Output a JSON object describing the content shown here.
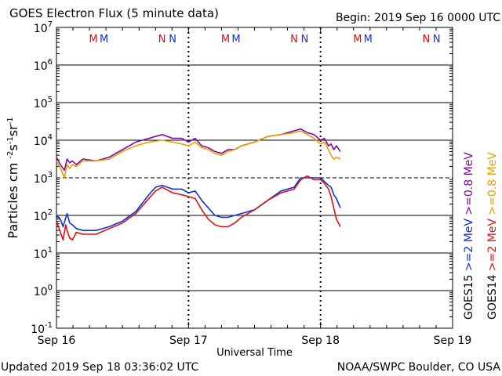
{
  "header": {
    "title": "GOES Electron Flux (5 minute data)",
    "begin": "Begin: 2019 Sep 16 0000 UTC"
  },
  "footer": {
    "updated": "Updated 2019 Sep 18 03:36:02 UTC",
    "source": "NOAA/SWPC Boulder, CO USA"
  },
  "colors": {
    "goes15_08": "#7a0aa0",
    "goes14_08": "#e8a000",
    "goes15_2": "#1030d0",
    "goes14_2": "#e01010",
    "marker_m": "#d01010",
    "marker_n": "#1030d0"
  },
  "chart_data": {
    "type": "line",
    "title": "GOES Electron Flux (5 minute data)",
    "xlabel": "Universal Time",
    "ylabel_parts": [
      "Particles cm",
      "-2",
      "s",
      "-1",
      "sr",
      "-1"
    ],
    "xlim_days": [
      0,
      3
    ],
    "ylim_log10": [
      -1,
      7
    ],
    "yscale": "log",
    "x_ticks": [
      {
        "day": 0,
        "label": "Sep 16"
      },
      {
        "day": 1,
        "label": "Sep 17"
      },
      {
        "day": 2,
        "label": "Sep 18"
      },
      {
        "day": 3,
        "label": "Sep 19"
      }
    ],
    "y_ticks": [
      {
        "exp": 7,
        "label": "10",
        "sup": "7"
      },
      {
        "exp": 6,
        "label": "10",
        "sup": "6"
      },
      {
        "exp": 5,
        "label": "10",
        "sup": "5"
      },
      {
        "exp": 4,
        "label": "10",
        "sup": "4"
      },
      {
        "exp": 3,
        "label": "10",
        "sup": "3"
      },
      {
        "exp": 2,
        "label": "10",
        "sup": "2"
      },
      {
        "exp": 1,
        "label": "10",
        "sup": "1"
      },
      {
        "exp": 0,
        "label": "10",
        "sup": "0"
      },
      {
        "exp": -1,
        "label": "10",
        "sup": "-1"
      }
    ],
    "threshold_log10": 3,
    "day_markers": [
      {
        "day": 0.28,
        "label": "M",
        "color": "marker_m"
      },
      {
        "day": 0.36,
        "label": "M",
        "color": "marker_n"
      },
      {
        "day": 0.8,
        "label": "N",
        "color": "marker_m"
      },
      {
        "day": 0.88,
        "label": "N",
        "color": "marker_n"
      },
      {
        "day": 1.28,
        "label": "M",
        "color": "marker_m"
      },
      {
        "day": 1.36,
        "label": "M",
        "color": "marker_n"
      },
      {
        "day": 1.8,
        "label": "N",
        "color": "marker_m"
      },
      {
        "day": 1.88,
        "label": "N",
        "color": "marker_n"
      },
      {
        "day": 2.28,
        "label": "M",
        "color": "marker_m"
      },
      {
        "day": 2.36,
        "label": "M",
        "color": "marker_n"
      },
      {
        "day": 2.8,
        "label": "N",
        "color": "marker_m"
      },
      {
        "day": 2.88,
        "label": "N",
        "color": "marker_n"
      }
    ],
    "legend": [
      {
        "sat": "GOES15",
        "energy": ">=0.8 MeV",
        "colorKey": "goes15_08"
      },
      {
        "sat": "GOES14",
        "energy": ">=0.8 MeV",
        "colorKey": "goes14_08"
      },
      {
        "sat": "GOES15",
        "energy": ">=2 MeV",
        "colorKey": "goes15_2"
      },
      {
        "sat": "GOES14",
        "energy": ">=2 MeV",
        "colorKey": "goes14_2"
      }
    ],
    "series": [
      {
        "name": "GOES15 >=0.8 MeV",
        "colorKey": "goes15_08",
        "x": [
          0.0,
          0.03,
          0.06,
          0.08,
          0.1,
          0.12,
          0.15,
          0.2,
          0.3,
          0.4,
          0.5,
          0.6,
          0.7,
          0.8,
          0.88,
          0.95,
          1.0,
          1.05,
          1.1,
          1.15,
          1.2,
          1.25,
          1.3,
          1.35,
          1.4,
          1.5,
          1.6,
          1.7,
          1.8,
          1.85,
          1.9,
          1.95,
          2.0,
          2.03,
          2.06,
          2.08,
          2.1,
          2.12,
          2.15
        ],
        "y": [
          3.55,
          3.35,
          3.2,
          3.5,
          3.4,
          3.45,
          3.35,
          3.5,
          3.45,
          3.55,
          3.75,
          3.95,
          4.05,
          4.15,
          4.05,
          4.05,
          3.95,
          4.05,
          3.85,
          3.8,
          3.7,
          3.65,
          3.75,
          3.75,
          3.85,
          3.95,
          4.1,
          4.15,
          4.25,
          4.3,
          4.2,
          4.15,
          4.0,
          4.05,
          3.85,
          3.9,
          3.75,
          3.85,
          3.7
        ]
      },
      {
        "name": "GOES14 >=0.8 MeV",
        "colorKey": "goes14_08",
        "x": [
          0.0,
          0.03,
          0.06,
          0.08,
          0.1,
          0.12,
          0.15,
          0.2,
          0.3,
          0.4,
          0.5,
          0.6,
          0.7,
          0.8,
          0.88,
          0.95,
          1.0,
          1.05,
          1.1,
          1.15,
          1.2,
          1.25,
          1.3,
          1.35,
          1.4,
          1.5,
          1.6,
          1.7,
          1.8,
          1.85,
          1.9,
          1.95,
          2.0,
          2.03,
          2.06,
          2.08,
          2.1,
          2.12,
          2.15
        ],
        "y": [
          3.45,
          3.25,
          3.0,
          3.35,
          3.25,
          3.35,
          3.3,
          3.45,
          3.45,
          3.5,
          3.7,
          3.85,
          3.95,
          4.0,
          3.95,
          3.9,
          3.85,
          3.95,
          3.8,
          3.75,
          3.65,
          3.6,
          3.7,
          3.75,
          3.85,
          3.95,
          4.1,
          4.15,
          4.2,
          4.25,
          4.15,
          4.05,
          3.9,
          3.95,
          3.75,
          3.6,
          3.5,
          3.55,
          3.5
        ]
      },
      {
        "name": "GOES15 >=2 MeV",
        "colorKey": "goes15_2",
        "x": [
          0.0,
          0.03,
          0.05,
          0.08,
          0.1,
          0.12,
          0.15,
          0.2,
          0.25,
          0.3,
          0.4,
          0.5,
          0.6,
          0.7,
          0.75,
          0.8,
          0.88,
          0.95,
          1.0,
          1.05,
          1.1,
          1.15,
          1.2,
          1.25,
          1.3,
          1.35,
          1.4,
          1.5,
          1.6,
          1.7,
          1.8,
          1.85,
          1.9,
          1.95,
          2.0,
          2.03,
          2.06,
          2.08,
          2.1,
          2.12,
          2.15
        ],
        "y": [
          2.0,
          1.9,
          1.7,
          2.05,
          1.8,
          1.75,
          1.65,
          1.6,
          1.6,
          1.6,
          1.7,
          1.85,
          2.1,
          2.55,
          2.75,
          2.8,
          2.7,
          2.7,
          2.6,
          2.65,
          2.4,
          2.2,
          2.0,
          1.95,
          1.95,
          2.0,
          2.05,
          2.15,
          2.4,
          2.65,
          2.75,
          3.0,
          3.0,
          3.0,
          3.0,
          2.9,
          2.8,
          2.75,
          2.55,
          2.45,
          2.2
        ]
      },
      {
        "name": "GOES14 >=2 MeV",
        "colorKey": "goes14_2",
        "x": [
          0.0,
          0.03,
          0.05,
          0.07,
          0.08,
          0.1,
          0.12,
          0.15,
          0.2,
          0.25,
          0.3,
          0.4,
          0.5,
          0.6,
          0.7,
          0.75,
          0.8,
          0.88,
          0.95,
          1.0,
          1.05,
          1.1,
          1.15,
          1.2,
          1.25,
          1.3,
          1.35,
          1.4,
          1.5,
          1.6,
          1.7,
          1.8,
          1.85,
          1.9,
          1.95,
          2.0,
          2.03,
          2.06,
          2.08,
          2.1,
          2.12,
          2.15
        ],
        "y": [
          1.85,
          1.55,
          1.35,
          1.75,
          1.6,
          1.4,
          1.35,
          1.55,
          1.5,
          1.5,
          1.5,
          1.65,
          1.8,
          2.05,
          2.45,
          2.65,
          2.75,
          2.6,
          2.55,
          2.5,
          2.45,
          2.15,
          1.9,
          1.75,
          1.7,
          1.7,
          1.8,
          1.95,
          2.15,
          2.4,
          2.6,
          2.7,
          2.95,
          3.05,
          2.95,
          2.95,
          2.85,
          2.7,
          2.5,
          2.2,
          1.9,
          1.7
        ]
      }
    ]
  }
}
